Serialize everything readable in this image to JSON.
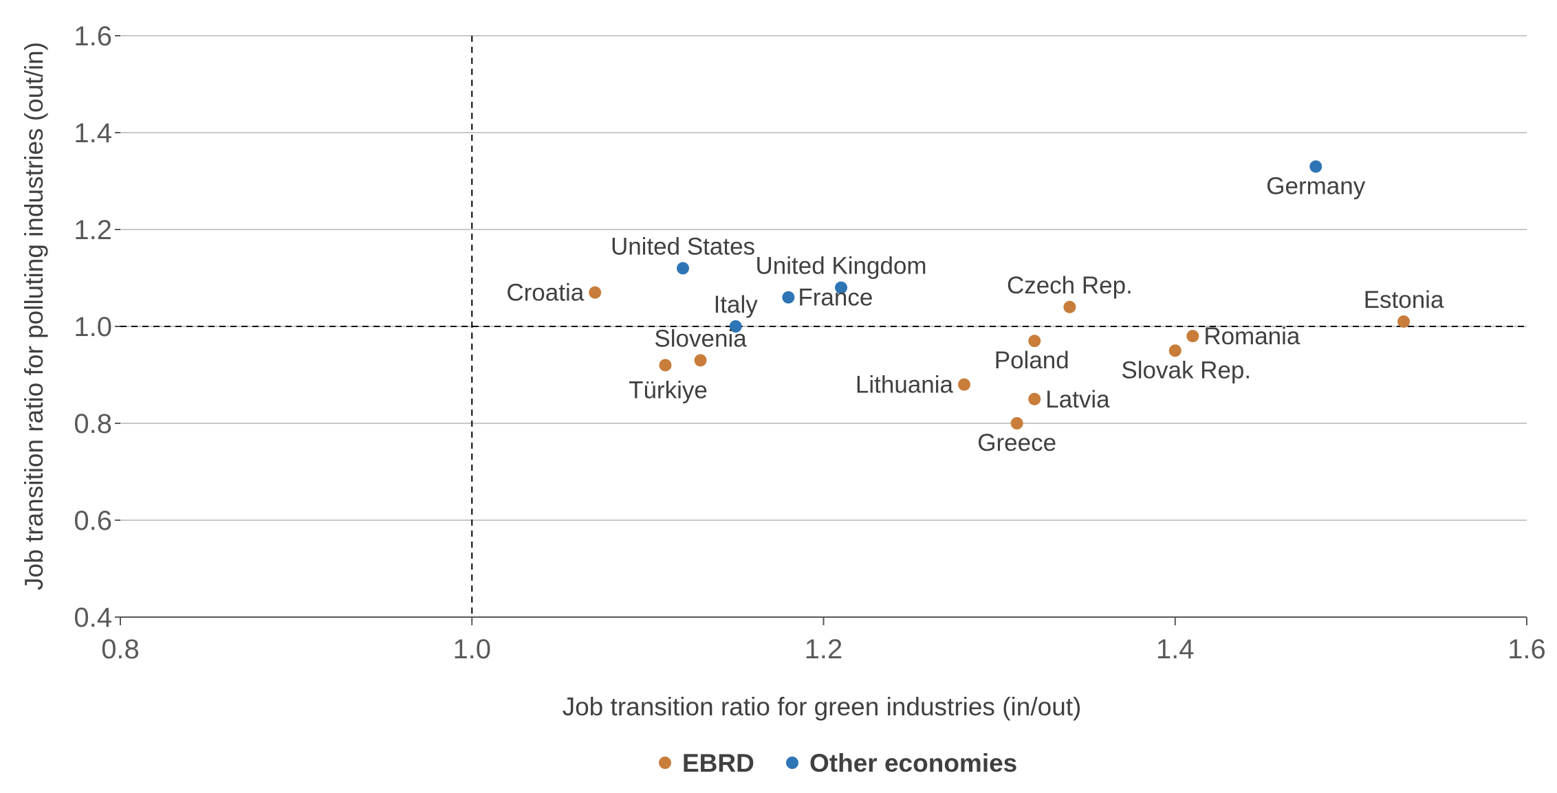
{
  "chart_data": {
    "type": "scatter",
    "title": "",
    "xlabel": "Job transition ratio for green industries (in/out)",
    "ylabel": "Job transition ratio for polluting industries (out/in)",
    "xlim": [
      0.8,
      1.6
    ],
    "ylim": [
      0.4,
      1.6
    ],
    "x_ticks": [
      "0.8",
      "1.0",
      "1.2",
      "1.4",
      "1.6"
    ],
    "y_ticks": [
      "0.4",
      "0.6",
      "0.8",
      "1.0",
      "1.2",
      "1.4",
      "1.6"
    ],
    "grid": "horizontal",
    "reference_lines": {
      "x": 1.0,
      "y": 1.0
    },
    "legend_position": "bottom-center",
    "colors": {
      "EBRD": "#C87D3A",
      "Other economies": "#2E75B6",
      "grid": "#c8c8c8",
      "axis": "#595959"
    },
    "series": [
      {
        "name": "EBRD",
        "points": [
          {
            "label": "Croatia",
            "x": 1.07,
            "y": 1.07
          },
          {
            "label": "Türkiye",
            "x": 1.11,
            "y": 0.92
          },
          {
            "label": "Slovenia",
            "x": 1.13,
            "y": 0.93
          },
          {
            "label": "Lithuania",
            "x": 1.28,
            "y": 0.88
          },
          {
            "label": "Greece",
            "x": 1.31,
            "y": 0.8
          },
          {
            "label": "Latvia",
            "x": 1.32,
            "y": 0.85
          },
          {
            "label": "Poland",
            "x": 1.32,
            "y": 0.97
          },
          {
            "label": "Czech Rep.",
            "x": 1.34,
            "y": 1.04
          },
          {
            "label": "Slovak Rep.",
            "x": 1.4,
            "y": 0.95
          },
          {
            "label": "Romania",
            "x": 1.41,
            "y": 0.98
          },
          {
            "label": "Estonia",
            "x": 1.53,
            "y": 1.01
          }
        ]
      },
      {
        "name": "Other economies",
        "points": [
          {
            "label": "United States",
            "x": 1.12,
            "y": 1.12
          },
          {
            "label": "Italy",
            "x": 1.15,
            "y": 1.0
          },
          {
            "label": "France",
            "x": 1.18,
            "y": 1.06
          },
          {
            "label": "United Kingdom",
            "x": 1.21,
            "y": 1.08
          },
          {
            "label": "Germany",
            "x": 1.48,
            "y": 1.33
          }
        ]
      }
    ]
  }
}
